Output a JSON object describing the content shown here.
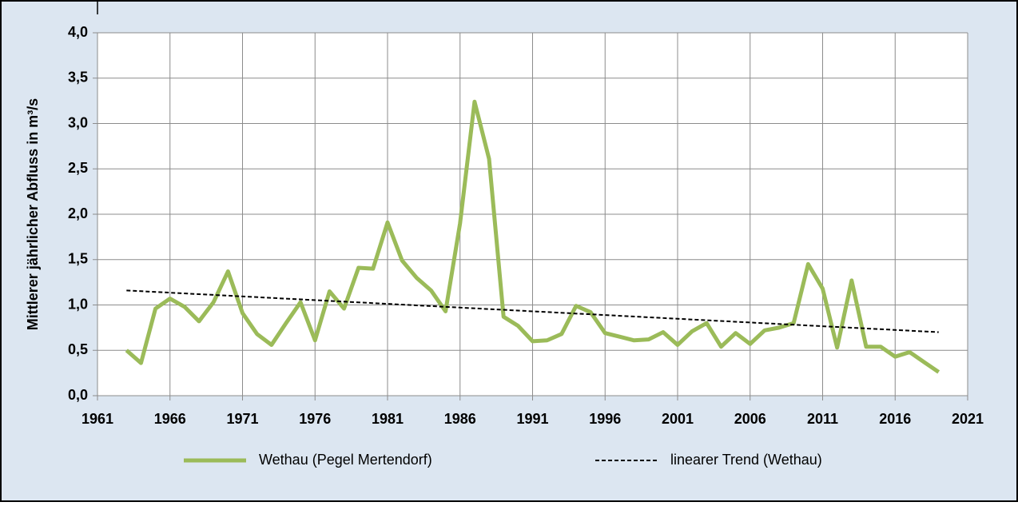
{
  "chart_data": {
    "type": "line",
    "y_label": "Mittlerer jährlicher Abfluss in m³/s",
    "x": [
      1963,
      1964,
      1965,
      1966,
      1967,
      1968,
      1969,
      1970,
      1971,
      1972,
      1973,
      1974,
      1975,
      1976,
      1977,
      1978,
      1979,
      1980,
      1981,
      1982,
      1983,
      1984,
      1985,
      1986,
      1987,
      1988,
      1989,
      1990,
      1991,
      1992,
      1993,
      1994,
      1995,
      1996,
      1997,
      1998,
      1999,
      2000,
      2001,
      2002,
      2003,
      2004,
      2005,
      2006,
      2007,
      2008,
      2009,
      2010,
      2011,
      2012,
      2013,
      2014,
      2015,
      2016,
      2017,
      2018,
      2019
    ],
    "series": [
      {
        "name": "Wethau (Pegel Mertendorf)",
        "color": "#9bbb59",
        "values": [
          0.5,
          0.36,
          0.96,
          1.07,
          0.98,
          0.82,
          1.03,
          1.37,
          0.91,
          0.68,
          0.56,
          0.8,
          1.03,
          0.61,
          1.15,
          0.96,
          1.41,
          1.4,
          1.91,
          1.49,
          1.3,
          1.16,
          0.93,
          1.9,
          3.24,
          2.61,
          0.87,
          0.77,
          0.6,
          0.61,
          0.68,
          0.99,
          0.92,
          0.69,
          0.65,
          0.61,
          0.62,
          0.7,
          0.56,
          0.71,
          0.8,
          0.54,
          0.69,
          0.57,
          0.72,
          0.75,
          0.8,
          1.45,
          1.18,
          0.53,
          1.27,
          0.54,
          0.54,
          0.43,
          0.48,
          0.37,
          0.26
        ]
      },
      {
        "name": "linearer Trend (Wethau)",
        "color": "#000000",
        "dashed": true,
        "x": [
          1963,
          2019
        ],
        "values": [
          1.16,
          0.7
        ]
      }
    ],
    "xlim": [
      1961,
      2021
    ],
    "xticks": [
      1961,
      1966,
      1971,
      1976,
      1981,
      1986,
      1991,
      1996,
      2001,
      2006,
      2011,
      2016,
      2021
    ],
    "ylim": [
      0,
      4
    ],
    "yticks": [
      {
        "value": 0,
        "label": "0,0"
      },
      {
        "value": 0.5,
        "label": "0,5"
      },
      {
        "value": 1,
        "label": "1,0"
      },
      {
        "value": 1.5,
        "label": "1,5"
      },
      {
        "value": 2,
        "label": "2,0"
      },
      {
        "value": 2.5,
        "label": "2,5"
      },
      {
        "value": 3,
        "label": "3,0"
      },
      {
        "value": 3.5,
        "label": "3,5"
      },
      {
        "value": 4,
        "label": "4,0"
      }
    ],
    "grid": true,
    "legend": "bottom"
  }
}
